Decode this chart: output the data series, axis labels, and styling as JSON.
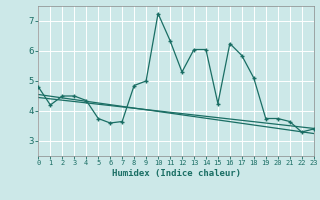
{
  "xlabel": "Humidex (Indice chaleur)",
  "ylabel": "",
  "xlim": [
    0,
    23
  ],
  "ylim": [
    2.5,
    7.5
  ],
  "yticks": [
    3,
    4,
    5,
    6,
    7
  ],
  "xticks": [
    0,
    1,
    2,
    3,
    4,
    5,
    6,
    7,
    8,
    9,
    10,
    11,
    12,
    13,
    14,
    15,
    16,
    17,
    18,
    19,
    20,
    21,
    22,
    23
  ],
  "bg_color": "#cce8e8",
  "line_color": "#1a6e64",
  "x_data": [
    0,
    1,
    2,
    3,
    4,
    5,
    6,
    7,
    8,
    9,
    10,
    11,
    12,
    13,
    14,
    15,
    16,
    17,
    18,
    19,
    20,
    21,
    22,
    23
  ],
  "y_data": [
    4.8,
    4.2,
    4.5,
    4.5,
    4.35,
    3.75,
    3.6,
    3.65,
    4.85,
    5.0,
    7.25,
    6.35,
    5.3,
    6.05,
    6.05,
    4.25,
    6.25,
    5.85,
    5.1,
    3.75,
    3.75,
    3.65,
    3.3,
    3.4
  ],
  "trend_x": [
    0,
    23
  ],
  "trend_y": [
    4.55,
    3.25
  ],
  "trend2_y": [
    4.45,
    3.42
  ]
}
